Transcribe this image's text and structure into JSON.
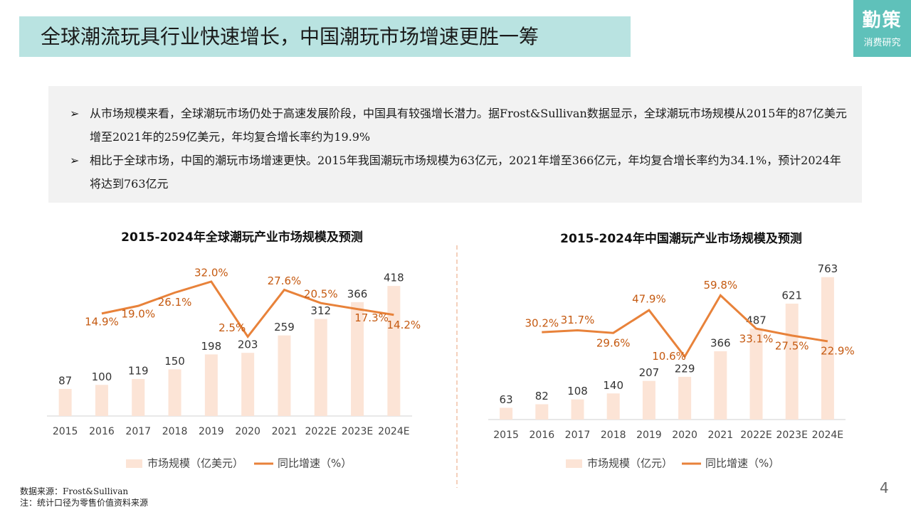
{
  "title": "全球潮流玩具行业快速增长，中国潮玩市场增速更胜一筹",
  "logo": {
    "name": "勤策",
    "subtitle": "消费研究"
  },
  "bullets": [
    "从市场规模来看，全球潮玩市场仍处于高速发展阶段，中国具有较强增长潜力。据Frost&Sullivan数据显示，全球潮玩市场规模从2015年的87亿美元增至2021年的259亿美元，年均复合增长率约为19.9%",
    "相比于全球市场，中国的潮玩市场增速更快。2015年我国潮玩市场规模为63亿元，2021年增至366亿元，年均复合增长率约为34.1%，预计2024年将达到763亿元"
  ],
  "chart_data": [
    {
      "type": "bar",
      "title": "2015-2024年全球潮玩产业市场规模及预测",
      "categories": [
        "2015",
        "2016",
        "2017",
        "2018",
        "2019",
        "2020",
        "2021",
        "2022E",
        "2023E",
        "2024E"
      ],
      "series": [
        {
          "name": "市场规模（亿美元）",
          "color": "#fce4d6",
          "values": [
            87,
            100,
            119,
            150,
            198,
            203,
            259,
            312,
            366,
            418
          ]
        },
        {
          "name": "同比增速（%）",
          "color": "#e8823a",
          "axis": "y2",
          "values": [
            null,
            14.9,
            19.0,
            26.1,
            32.0,
            2.5,
            27.6,
            20.5,
            17.3,
            14.2
          ],
          "value_labels": [
            null,
            "14.9%",
            "19.0%",
            "26.1%",
            "32.0%",
            "2.5%",
            "27.6%",
            "20.5%",
            "17.3%",
            "14.2%"
          ]
        }
      ],
      "ylim": [
        0,
        480
      ],
      "y2lim": [
        -40,
        40
      ]
    },
    {
      "type": "bar",
      "title": "2015-2024年中国潮玩产业市场规模及预测",
      "categories": [
        "2015",
        "2016",
        "2017",
        "2018",
        "2019",
        "2020",
        "2021",
        "2022E",
        "2023E",
        "2024E"
      ],
      "series": [
        {
          "name": "市场规模（亿元）",
          "color": "#fce4d6",
          "values": [
            63,
            82,
            108,
            140,
            207,
            229,
            366,
            487,
            621,
            763
          ]
        },
        {
          "name": "同比增速（%）",
          "color": "#e8823a",
          "axis": "y2",
          "values": [
            null,
            30.2,
            31.7,
            29.6,
            47.9,
            10.6,
            59.8,
            33.1,
            27.5,
            22.9
          ],
          "value_labels": [
            null,
            "30.2%",
            "31.7%",
            "29.6%",
            "47.9%",
            "10.6%",
            "59.8%",
            "33.1%",
            "27.5%",
            "22.9%"
          ]
        }
      ],
      "ylim": [
        0,
        800
      ],
      "y2lim": [
        -40,
        80
      ]
    }
  ],
  "notes": [
    "数据来源：Frost&Sullivan",
    "注：统计口径为零售价值资料来源"
  ],
  "page_number": "4"
}
